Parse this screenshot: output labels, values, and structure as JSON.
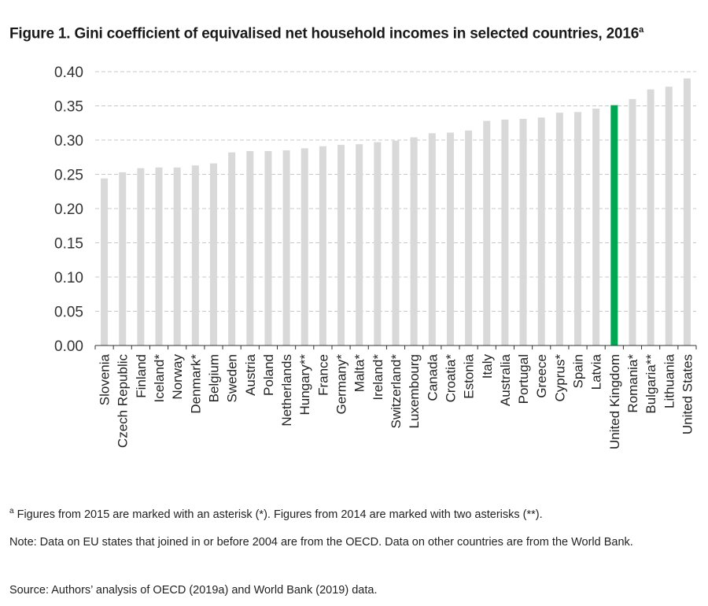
{
  "title": {
    "text": "Figure 1. Gini coefficient of equivalised net household incomes in selected countries, 2016",
    "sup": "a"
  },
  "chart_data": {
    "type": "bar",
    "title": "Figure 1. Gini coefficient of equivalised net household incomes in selected countries, 2016",
    "xlabel": "",
    "ylabel": "",
    "ylim": [
      0,
      0.4
    ],
    "yticks": [
      "0.00",
      "0.05",
      "0.10",
      "0.15",
      "0.20",
      "0.25",
      "0.30",
      "0.35",
      "0.40"
    ],
    "grid": true,
    "categories": [
      "Slovenia",
      "Czech Republic",
      "Finland",
      "Iceland*",
      "Norway",
      "Denmark*",
      "Belgium",
      "Sweden",
      "Austria",
      "Poland",
      "Netherlands",
      "Hungary**",
      "France",
      "Germany*",
      "Malta*",
      "Ireland*",
      "Switzerland*",
      "Luxembourg",
      "Canada",
      "Croatia*",
      "Estonia",
      "Italy",
      "Australia",
      "Portugal",
      "Greece",
      "Cyprus*",
      "Spain",
      "Latvia",
      "United Kingdom",
      "Romania*",
      "Bulgaria**",
      "Lithuania",
      "United States"
    ],
    "values": [
      0.244,
      0.253,
      0.259,
      0.26,
      0.26,
      0.263,
      0.266,
      0.282,
      0.284,
      0.284,
      0.285,
      0.288,
      0.291,
      0.293,
      0.294,
      0.297,
      0.299,
      0.304,
      0.31,
      0.311,
      0.314,
      0.328,
      0.33,
      0.331,
      0.333,
      0.34,
      0.341,
      0.346,
      0.351,
      0.36,
      0.374,
      0.378,
      0.39
    ],
    "highlight": "United Kingdom",
    "colors": {
      "bar": "#d9d9d9",
      "highlight": "#00a651",
      "grid": "#c8c8c8",
      "axis": "#333333"
    }
  },
  "footnote": {
    "sup": "a",
    "text": " Figures from 2015 are marked with an asterisk (*). Figures from 2014 are marked with two asterisks (**)."
  },
  "note": "Note: Data on EU states that joined in or before 2004 are from the OECD. Data on other countries are from the World Bank.",
  "source": "Source: Authors’ analysis of OECD (2019a) and World Bank (2019) data."
}
